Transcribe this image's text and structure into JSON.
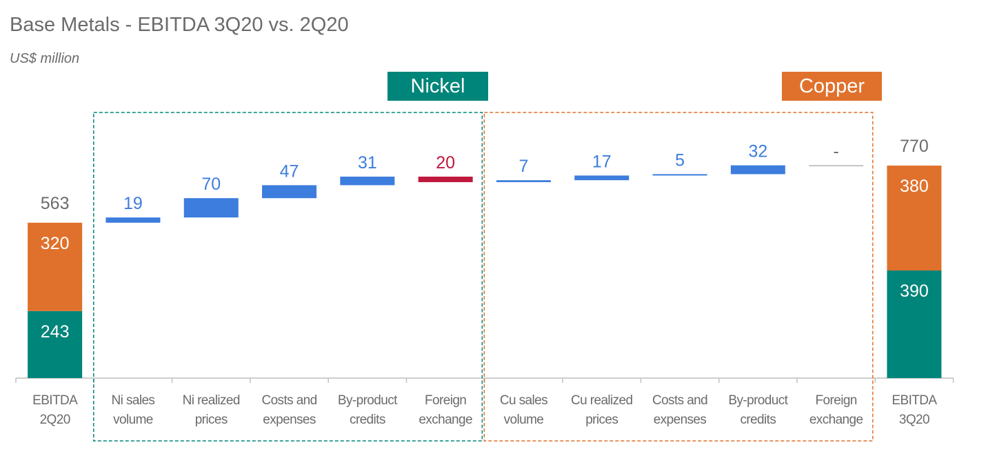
{
  "title": "Base Metals - EBITDA 3Q20 vs. 2Q20",
  "subtitle": "US$ million",
  "groups": [
    {
      "name": "Nickel",
      "color": "#00857a"
    },
    {
      "name": "Copper",
      "color": "#e0712c"
    }
  ],
  "colors": {
    "nickel": "#00857a",
    "copper": "#e0712c",
    "increase": "#3c7ddd",
    "negative": "#c0193e",
    "neutral": "#8c8c8c",
    "axis": "#bfbfbf",
    "text": "#6b6b6b"
  },
  "chart_data": {
    "type": "waterfall",
    "title": "Base Metals - EBITDA 3Q20 vs. 2Q20",
    "subtitle": "US$ million",
    "categories": [
      [
        "EBITDA",
        "2Q20"
      ],
      [
        "Ni sales",
        "volume"
      ],
      [
        "Ni realized",
        "prices"
      ],
      [
        "Costs and",
        "expenses"
      ],
      [
        "By-product",
        "credits"
      ],
      [
        "Foreign",
        "exchange"
      ],
      [
        "Cu sales",
        "volume"
      ],
      [
        "Cu realized",
        "prices"
      ],
      [
        "Costs and",
        "expenses"
      ],
      [
        "By-product",
        "credits"
      ],
      [
        "Foreign",
        "exchange"
      ],
      [
        "EBITDA",
        "3Q20"
      ]
    ],
    "bars": [
      {
        "kind": "total",
        "stack": [
          {
            "label": "243",
            "value": 243,
            "color": "nickel"
          },
          {
            "label": "320",
            "value": 320,
            "color": "copper"
          }
        ],
        "total_label": "563",
        "total": 563
      },
      {
        "kind": "delta",
        "label": "19",
        "value": 19,
        "color": "increase"
      },
      {
        "kind": "delta",
        "label": "70",
        "value": 70,
        "color": "increase"
      },
      {
        "kind": "delta",
        "label": "47",
        "value": 47,
        "color": "increase"
      },
      {
        "kind": "delta",
        "label": "31",
        "value": 31,
        "color": "increase"
      },
      {
        "kind": "delta",
        "label": "20",
        "value": -20,
        "color": "negative"
      },
      {
        "kind": "delta",
        "label": "7",
        "value": 7,
        "color": "increase"
      },
      {
        "kind": "delta",
        "label": "17",
        "value": 17,
        "color": "increase"
      },
      {
        "kind": "delta",
        "label": "5",
        "value": 5,
        "color": "increase"
      },
      {
        "kind": "delta",
        "label": "32",
        "value": 32,
        "color": "increase"
      },
      {
        "kind": "delta",
        "label": "-",
        "value": 0,
        "color": "neutral"
      },
      {
        "kind": "total",
        "stack": [
          {
            "label": "390",
            "value": 390,
            "color": "nickel"
          },
          {
            "label": "380",
            "value": 380,
            "color": "copper"
          }
        ],
        "total_label": "770",
        "total": 770
      }
    ],
    "group_spans": [
      {
        "name": "Nickel",
        "from": 1,
        "to": 5
      },
      {
        "name": "Copper",
        "from": 6,
        "to": 10
      }
    ],
    "ylim": [
      0,
      800
    ]
  }
}
